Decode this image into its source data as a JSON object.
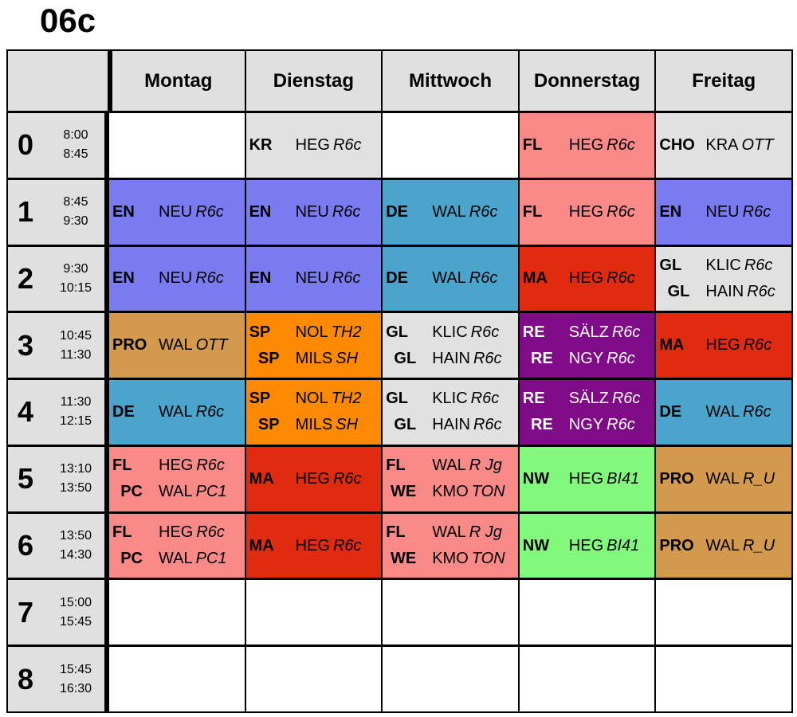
{
  "title": "06c",
  "days": [
    "Montag",
    "Dienstag",
    "Mittwoch",
    "Donnerstag",
    "Freitag"
  ],
  "periods": [
    {
      "num": "0",
      "start": "8:00",
      "end": "8:45"
    },
    {
      "num": "1",
      "start": "8:45",
      "end": "9:30"
    },
    {
      "num": "2",
      "start": "9:30",
      "end": "10:15"
    },
    {
      "num": "3",
      "start": "10:45",
      "end": "11:30"
    },
    {
      "num": "4",
      "start": "11:30",
      "end": "12:15"
    },
    {
      "num": "5",
      "start": "13:10",
      "end": "13:50"
    },
    {
      "num": "6",
      "start": "13:50",
      "end": "14:30"
    },
    {
      "num": "7",
      "start": "15:00",
      "end": "15:45"
    },
    {
      "num": "8",
      "start": "15:45",
      "end": "16:30"
    }
  ],
  "colors": {
    "white": "#ffffff",
    "grey": "#e1e1e1",
    "purple": "#7b7bf1",
    "teal": "#4aa4cc",
    "pink": "#f98a87",
    "red": "#e02b10",
    "tan": "#d39a4e",
    "orange": "#fd8a00",
    "violet": "#7f0c86",
    "green": "#82f97d"
  },
  "schedule": [
    [
      {
        "color": "white",
        "lines": []
      },
      {
        "color": "grey",
        "lines": [
          {
            "subject": "KR",
            "teacher": "HEG",
            "room": "R6c"
          }
        ]
      },
      {
        "color": "white",
        "lines": []
      },
      {
        "color": "pink",
        "lines": [
          {
            "subject": "FL",
            "teacher": "HEG",
            "room": "R6c"
          }
        ]
      },
      {
        "color": "grey",
        "lines": [
          {
            "subject": "CHO",
            "teacher": "KRA",
            "room": "OTT"
          }
        ]
      }
    ],
    [
      {
        "color": "purple",
        "lines": [
          {
            "subject": "EN",
            "teacher": "NEU",
            "room": "R6c"
          }
        ]
      },
      {
        "color": "purple",
        "lines": [
          {
            "subject": "EN",
            "teacher": "NEU",
            "room": "R6c"
          }
        ]
      },
      {
        "color": "teal",
        "lines": [
          {
            "subject": "DE",
            "teacher": "WAL",
            "room": "R6c"
          }
        ]
      },
      {
        "color": "pink",
        "lines": [
          {
            "subject": "FL",
            "teacher": "HEG",
            "room": "R6c"
          }
        ]
      },
      {
        "color": "purple",
        "lines": [
          {
            "subject": "EN",
            "teacher": "NEU",
            "room": "R6c"
          }
        ]
      }
    ],
    [
      {
        "color": "purple",
        "lines": [
          {
            "subject": "EN",
            "teacher": "NEU",
            "room": "R6c"
          }
        ]
      },
      {
        "color": "purple",
        "lines": [
          {
            "subject": "EN",
            "teacher": "NEU",
            "room": "R6c"
          }
        ]
      },
      {
        "color": "teal",
        "lines": [
          {
            "subject": "DE",
            "teacher": "WAL",
            "room": "R6c"
          }
        ]
      },
      {
        "color": "red",
        "lines": [
          {
            "subject": "MA",
            "teacher": "HEG",
            "room": "R6c"
          }
        ]
      },
      {
        "color": "grey",
        "lines": [
          {
            "subject": "GL",
            "teacher": "KLIC",
            "room": "R6c"
          },
          {
            "subject": "GL",
            "teacher": "HAIN",
            "room": "R6c"
          }
        ]
      }
    ],
    [
      {
        "color": "tan",
        "lines": [
          {
            "subject": "PRO",
            "teacher": "WAL",
            "room": "OTT"
          }
        ]
      },
      {
        "color": "orange",
        "lines": [
          {
            "subject": "SP",
            "teacher": "NOL",
            "room": "TH2"
          },
          {
            "subject": "SP",
            "teacher": "MILS",
            "room": "SH"
          }
        ]
      },
      {
        "color": "grey",
        "lines": [
          {
            "subject": "GL",
            "teacher": "KLIC",
            "room": "R6c"
          },
          {
            "subject": "GL",
            "teacher": "HAIN",
            "room": "R6c"
          }
        ]
      },
      {
        "color": "violet",
        "lines": [
          {
            "subject": "RE",
            "teacher": "SÄLZ",
            "room": "R6c"
          },
          {
            "subject": "RE",
            "teacher": "NGY",
            "room": "R6c"
          }
        ]
      },
      {
        "color": "red",
        "lines": [
          {
            "subject": "MA",
            "teacher": "HEG",
            "room": "R6c"
          }
        ]
      }
    ],
    [
      {
        "color": "teal",
        "lines": [
          {
            "subject": "DE",
            "teacher": "WAL",
            "room": "R6c"
          }
        ]
      },
      {
        "color": "orange",
        "lines": [
          {
            "subject": "SP",
            "teacher": "NOL",
            "room": "TH2"
          },
          {
            "subject": "SP",
            "teacher": "MILS",
            "room": "SH"
          }
        ]
      },
      {
        "color": "grey",
        "lines": [
          {
            "subject": "GL",
            "teacher": "KLIC",
            "room": "R6c"
          },
          {
            "subject": "GL",
            "teacher": "HAIN",
            "room": "R6c"
          }
        ]
      },
      {
        "color": "violet",
        "lines": [
          {
            "subject": "RE",
            "teacher": "SÄLZ",
            "room": "R6c"
          },
          {
            "subject": "RE",
            "teacher": "NGY",
            "room": "R6c"
          }
        ]
      },
      {
        "color": "teal",
        "lines": [
          {
            "subject": "DE",
            "teacher": "WAL",
            "room": "R6c"
          }
        ]
      }
    ],
    [
      {
        "color": "pink",
        "lines": [
          {
            "subject": "FL",
            "teacher": "HEG",
            "room": "R6c"
          },
          {
            "subject": "PC",
            "teacher": "WAL",
            "room": "PC1"
          }
        ]
      },
      {
        "color": "red",
        "lines": [
          {
            "subject": "MA",
            "teacher": "HEG",
            "room": "R6c"
          }
        ]
      },
      {
        "color": "pink",
        "lines": [
          {
            "subject": "FL",
            "teacher": "WAL",
            "room": "R Jg"
          },
          {
            "subject": "WE",
            "teacher": "KMO",
            "room": "TON"
          }
        ]
      },
      {
        "color": "green",
        "lines": [
          {
            "subject": "NW",
            "teacher": "HEG",
            "room": "BI41"
          }
        ]
      },
      {
        "color": "tan",
        "lines": [
          {
            "subject": "PRO",
            "teacher": "WAL",
            "room": "R_U"
          }
        ]
      }
    ],
    [
      {
        "color": "pink",
        "lines": [
          {
            "subject": "FL",
            "teacher": "HEG",
            "room": "R6c"
          },
          {
            "subject": "PC",
            "teacher": "WAL",
            "room": "PC1"
          }
        ]
      },
      {
        "color": "red",
        "lines": [
          {
            "subject": "MA",
            "teacher": "HEG",
            "room": "R6c"
          }
        ]
      },
      {
        "color": "pink",
        "lines": [
          {
            "subject": "FL",
            "teacher": "WAL",
            "room": "R Jg"
          },
          {
            "subject": "WE",
            "teacher": "KMO",
            "room": "TON"
          }
        ]
      },
      {
        "color": "green",
        "lines": [
          {
            "subject": "NW",
            "teacher": "HEG",
            "room": "BI41"
          }
        ]
      },
      {
        "color": "tan",
        "lines": [
          {
            "subject": "PRO",
            "teacher": "WAL",
            "room": "R_U"
          }
        ]
      }
    ],
    [
      {
        "color": "white",
        "lines": []
      },
      {
        "color": "white",
        "lines": []
      },
      {
        "color": "white",
        "lines": []
      },
      {
        "color": "white",
        "lines": []
      },
      {
        "color": "white",
        "lines": []
      }
    ],
    [
      {
        "color": "white",
        "lines": []
      },
      {
        "color": "white",
        "lines": []
      },
      {
        "color": "white",
        "lines": []
      },
      {
        "color": "white",
        "lines": []
      },
      {
        "color": "white",
        "lines": []
      }
    ]
  ]
}
